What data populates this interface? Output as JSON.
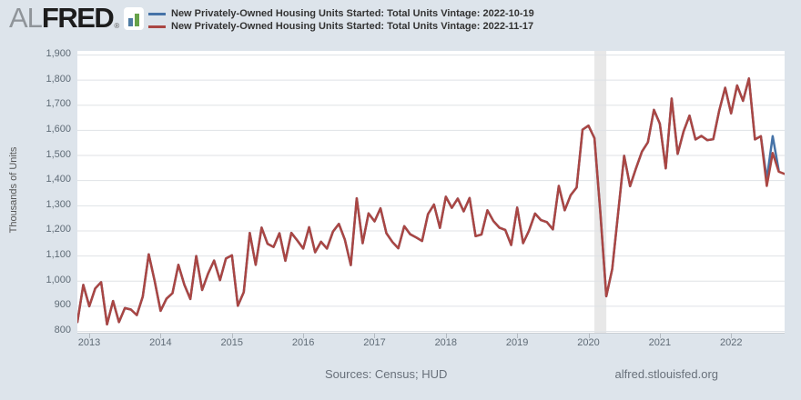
{
  "logo": {
    "al": "AL",
    "fred": "FRED",
    "reg": "®"
  },
  "brand": {
    "icon_bar_blue": "#4e7ca4",
    "icon_bar_green": "#67a24a",
    "page_background": "#dde4eb"
  },
  "footer": {
    "sources": "Sources: Census; HUD",
    "site": "alfred.stlouisfed.org"
  },
  "chart_data": {
    "type": "line",
    "title": "",
    "ylabel": "Thousands of Units",
    "xlabel": "",
    "x_unit": "month",
    "x_start": "2012-11",
    "x_end": "2022-10",
    "ylim": [
      800,
      1900
    ],
    "ytick_step": 100,
    "ytick_labels": [
      "800",
      "900",
      "1,000",
      "1,100",
      "1,200",
      "1,300",
      "1,400",
      "1,500",
      "1,600",
      "1,700",
      "1,800",
      "1,900"
    ],
    "year_ticks": [
      "2013",
      "2014",
      "2015",
      "2016",
      "2017",
      "2018",
      "2019",
      "2020",
      "2021",
      "2022"
    ],
    "grid": "horizontal",
    "legend_position": "top",
    "recession_band": {
      "start": "2020-02",
      "end": "2020-04",
      "color": "#e8e8e8"
    },
    "series": [
      {
        "name": "New Privately-Owned Housing Units Started: Total Units Vintage: 2022-10-19",
        "color": "#4572a7",
        "start": "2012-11",
        "values": [
          835,
          983,
          898,
          969,
          994,
          826,
          919,
          835,
          891,
          885,
          863,
          936,
          1105,
          999,
          880,
          928,
          950,
          1063,
          984,
          927,
          1098,
          963,
          1028,
          1080,
          1002,
          1088,
          1101,
          900,
          954,
          1190,
          1063,
          1211,
          1147,
          1134,
          1189,
          1079,
          1190,
          1160,
          1128,
          1213,
          1113,
          1155,
          1128,
          1195,
          1226,
          1164,
          1062,
          1328,
          1149,
          1268,
          1236,
          1288,
          1189,
          1154,
          1129,
          1217,
          1185,
          1172,
          1158,
          1265,
          1303,
          1210,
          1334,
          1290,
          1327,
          1276,
          1329,
          1177,
          1184,
          1280,
          1237,
          1211,
          1202,
          1142,
          1291,
          1149,
          1199,
          1267,
          1241,
          1233,
          1204,
          1377,
          1280,
          1340,
          1371,
          1601,
          1617,
          1567,
          1269,
          938,
          1046,
          1273,
          1497,
          1376,
          1448,
          1514,
          1551,
          1680,
          1625,
          1447,
          1725,
          1505,
          1594,
          1657,
          1562,
          1576,
          1559,
          1563,
          1678,
          1768,
          1666,
          1777,
          1716,
          1805,
          1562,
          1575,
          1404,
          1575,
          1439
        ]
      },
      {
        "name": "New Privately-Owned Housing Units Started: Total Units Vintage: 2022-11-17",
        "color": "#aa4643",
        "start": "2012-11",
        "values": [
          835,
          983,
          898,
          969,
          994,
          826,
          919,
          835,
          891,
          885,
          863,
          936,
          1105,
          999,
          880,
          928,
          950,
          1063,
          984,
          927,
          1098,
          963,
          1028,
          1080,
          1002,
          1088,
          1101,
          900,
          954,
          1190,
          1063,
          1211,
          1147,
          1134,
          1189,
          1079,
          1190,
          1160,
          1128,
          1213,
          1113,
          1155,
          1128,
          1195,
          1226,
          1164,
          1062,
          1328,
          1149,
          1268,
          1236,
          1288,
          1189,
          1154,
          1129,
          1217,
          1185,
          1172,
          1158,
          1265,
          1303,
          1210,
          1334,
          1290,
          1327,
          1276,
          1329,
          1177,
          1184,
          1280,
          1237,
          1211,
          1202,
          1142,
          1291,
          1149,
          1199,
          1267,
          1241,
          1233,
          1204,
          1377,
          1280,
          1340,
          1371,
          1601,
          1617,
          1567,
          1269,
          938,
          1046,
          1273,
          1497,
          1376,
          1448,
          1514,
          1551,
          1680,
          1625,
          1447,
          1725,
          1505,
          1594,
          1657,
          1562,
          1576,
          1559,
          1563,
          1678,
          1768,
          1666,
          1777,
          1716,
          1805,
          1562,
          1575,
          1377,
          1508,
          1434,
          1425
        ]
      }
    ]
  }
}
